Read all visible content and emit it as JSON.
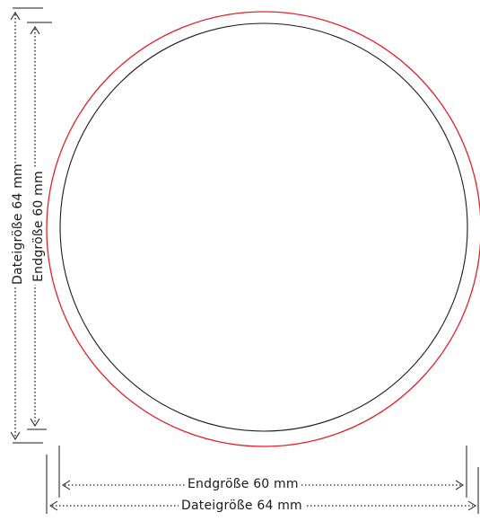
{
  "labels": {
    "endsize_bottom": "Endgröße   60 mm",
    "filesize_bottom": "Dateigröße  64  mm",
    "filesize_left": "Dateigröße  64  mm",
    "endsize_left": "Endgröße  60  mm"
  },
  "colors": {
    "bleed_circle": "#e4202a",
    "trim_circle": "#1a1a1a",
    "dimension_lines": "#1a1a1a"
  },
  "dimensions": {
    "file_size_mm": 64,
    "end_size_mm": 60,
    "unit": "mm"
  }
}
